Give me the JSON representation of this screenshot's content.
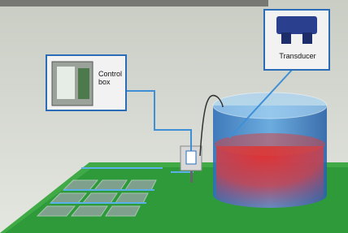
{
  "labels": {
    "control_box": "Control box",
    "transducer": "Transducer"
  }
}
